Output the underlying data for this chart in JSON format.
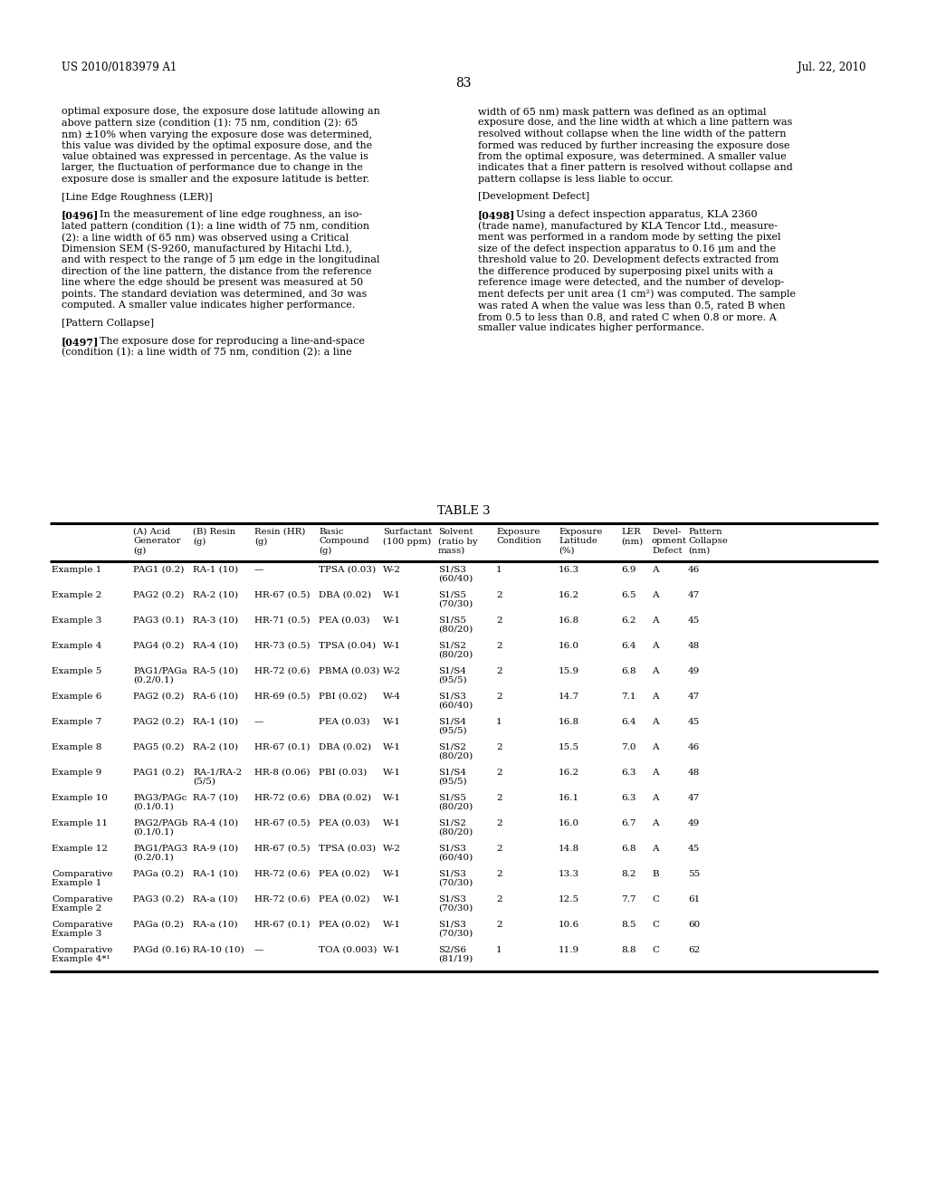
{
  "page_header_left": "US 2010/0183979 A1",
  "page_header_right": "Jul. 22, 2010",
  "page_number": "83",
  "background_color": "#ffffff",
  "text_color": "#000000",
  "left_column_text": [
    "optimal exposure dose, the exposure dose latitude allowing an",
    "above pattern size (condition (1): 75 nm, condition (2): 65",
    "nm) ±10% when varying the exposure dose was determined,",
    "this value was divided by the optimal exposure dose, and the",
    "value obtained was expressed in percentage. As the value is",
    "larger, the fluctuation of performance due to change in the",
    "exposure dose is smaller and the exposure latitude is better.",
    "",
    "[Line Edge Roughness (LER)]",
    "",
    "[0496]    In the measurement of line edge roughness, an iso-",
    "lated pattern (condition (1): a line width of 75 nm, condition",
    "(2): a line width of 65 nm) was observed using a Critical",
    "Dimension SEM (S-9260, manufactured by Hitachi Ltd.),",
    "and with respect to the range of 5 μm edge in the longitudinal",
    "direction of the line pattern, the distance from the reference",
    "line where the edge should be present was measured at 50",
    "points. The standard deviation was determined, and 3σ was",
    "computed. A smaller value indicates higher performance.",
    "",
    "[Pattern Collapse]",
    "",
    "[0497]    The exposure dose for reproducing a line-and-space",
    "(condition (1): a line width of 75 nm, condition (2): a line"
  ],
  "right_column_text": [
    "width of 65 nm) mask pattern was defined as an optimal",
    "exposure dose, and the line width at which a line pattern was",
    "resolved without collapse when the line width of the pattern",
    "formed was reduced by further increasing the exposure dose",
    "from the optimal exposure, was determined. A smaller value",
    "indicates that a finer pattern is resolved without collapse and",
    "pattern collapse is less liable to occur.",
    "",
    "[Development Defect]",
    "",
    "[0498]    Using a defect inspection apparatus, KLA 2360",
    "(trade name), manufactured by KLA Tencor Ltd., measure-",
    "ment was performed in a random mode by setting the pixel",
    "size of the defect inspection apparatus to 0.16 μm and the",
    "threshold value to 20. Development defects extracted from",
    "the difference produced by superposing pixel units with a",
    "reference image were detected, and the number of develop-",
    "ment defects per unit area (1 cm²) was computed. The sample",
    "was rated A when the value was less than 0.5, rated B when",
    "from 0.5 to less than 0.8, and rated C when 0.8 or more. A",
    "smaller value indicates higher performance."
  ],
  "table_title": "TABLE 3",
  "table_rows": [
    [
      "Example 1",
      "PAG1 (0.2)",
      "RA-1 (10)",
      "—",
      "TPSA (0.03)",
      "W-2",
      "S1/S3",
      "(60/40)",
      "1",
      "16.3",
      "6.9",
      "A",
      "46"
    ],
    [
      "Example 2",
      "PAG2 (0.2)",
      "RA-2 (10)",
      "HR-67 (0.5)",
      "DBA (0.02)",
      "W-1",
      "S1/S5",
      "(70/30)",
      "2",
      "16.2",
      "6.5",
      "A",
      "47"
    ],
    [
      "Example 3",
      "PAG3 (0.1)",
      "RA-3 (10)",
      "HR-71 (0.5)",
      "PEA (0.03)",
      "W-1",
      "S1/S5",
      "(80/20)",
      "2",
      "16.8",
      "6.2",
      "A",
      "45"
    ],
    [
      "Example 4",
      "PAG4 (0.2)",
      "RA-4 (10)",
      "HR-73 (0.5)",
      "TPSA (0.04)",
      "W-1",
      "S1/S2",
      "(80/20)",
      "2",
      "16.0",
      "6.4",
      "A",
      "48"
    ],
    [
      "Example 5",
      "PAG1/PAGa",
      "(0.2/0.1)",
      "RA-5 (10)",
      "HR-72 (0.6)",
      "PBMA (0.03)",
      "W-2",
      "S1/S4",
      "(95/5)",
      "2",
      "15.9",
      "6.8",
      "A",
      "49"
    ],
    [
      "Example 6",
      "PAG2 (0.2)",
      "RA-6 (10)",
      "HR-69 (0.5)",
      "PBI (0.02)",
      "W-4",
      "S1/S3",
      "(60/40)",
      "2",
      "14.7",
      "7.1",
      "A",
      "47"
    ],
    [
      "Example 7",
      "PAG2 (0.2)",
      "RA-1 (10)",
      "—",
      "PEA (0.03)",
      "W-1",
      "S1/S4",
      "(95/5)",
      "1",
      "16.8",
      "6.4",
      "A",
      "45"
    ],
    [
      "Example 8",
      "PAG5 (0.2)",
      "RA-2 (10)",
      "HR-67 (0.1)",
      "DBA (0.02)",
      "W-1",
      "S1/S2",
      "(80/20)",
      "2",
      "15.5",
      "7.0",
      "A",
      "46"
    ],
    [
      "Example 9",
      "PAG1 (0.2)",
      "RA-1/RA-2",
      "(5/5)",
      "HR-8 (0.06)",
      "PBI (0.03)",
      "W-1",
      "S1/S4",
      "(95/5)",
      "2",
      "16.2",
      "6.3",
      "A",
      "48"
    ],
    [
      "Example 10",
      "PAG3/PAGc",
      "(0.1/0.1)",
      "RA-7 (10)",
      "HR-72 (0.6)",
      "DBA (0.02)",
      "W-1",
      "S1/S5",
      "(80/20)",
      "2",
      "16.1",
      "6.3",
      "A",
      "47"
    ],
    [
      "Example 11",
      "PAG2/PAGb",
      "(0.1/0.1)",
      "RA-4 (10)",
      "HR-67 (0.5)",
      "PEA (0.03)",
      "W-1",
      "S1/S2",
      "(80/20)",
      "2",
      "16.0",
      "6.7",
      "A",
      "49"
    ],
    [
      "Example 12",
      "PAG1/PAG3",
      "(0.2/0.1)",
      "RA-9 (10)",
      "HR-67 (0.5)",
      "TPSA (0.03)",
      "W-2",
      "S1/S3",
      "(60/40)",
      "2",
      "14.8",
      "6.8",
      "A",
      "45"
    ],
    [
      "Comparative",
      "Example 1",
      "PAGa (0.2)",
      "RA-1 (10)",
      "HR-72 (0.6)",
      "PEA (0.02)",
      "W-1",
      "S1/S3",
      "(70/30)",
      "2",
      "13.3",
      "8.2",
      "B",
      "55"
    ],
    [
      "Comparative",
      "Example 2",
      "PAG3 (0.2)",
      "RA-a (10)",
      "HR-72 (0.6)",
      "PEA (0.02)",
      "W-1",
      "S1/S3",
      "(70/30)",
      "2",
      "12.5",
      "7.7",
      "C",
      "61"
    ],
    [
      "Comparative",
      "Example 3",
      "PAGa (0.2)",
      "RA-a (10)",
      "HR-67 (0.1)",
      "PEA (0.02)",
      "W-1",
      "S1/S3",
      "(70/30)",
      "2",
      "10.6",
      "8.5",
      "C",
      "60"
    ],
    [
      "Comparative",
      "Example 4*¹",
      "PAGd (0.16)",
      "RA-10 (10)",
      "—",
      "TOA (0.003)",
      "W-1",
      "S2/S6",
      "(81/19)",
      "1",
      "11.9",
      "8.8",
      "C",
      "62"
    ]
  ]
}
